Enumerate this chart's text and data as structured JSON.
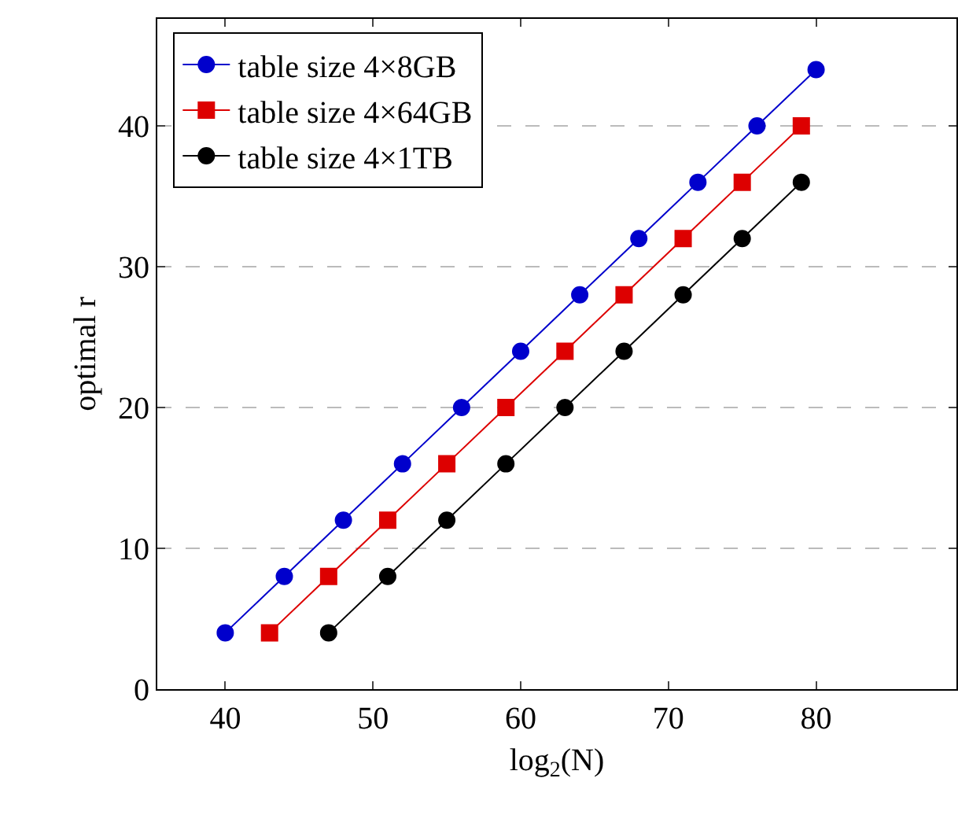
{
  "chart_data": {
    "type": "line",
    "xlabel": "log$_{2}$(N)",
    "ylabel": "optimal r",
    "xlim": [
      35.4,
      89.5
    ],
    "xticks": [
      40,
      50,
      60,
      70,
      80
    ],
    "ylim": [
      0,
      47.6
    ],
    "yticks": [
      0,
      10,
      20,
      30,
      40
    ],
    "grid": "y",
    "legend": "top left",
    "series": [
      {
        "name": "table size 4×8GB",
        "color": "#0000cc",
        "marker": "circle",
        "x": [
          40,
          44,
          48,
          52,
          56,
          60,
          64,
          68,
          72,
          76,
          80
        ],
        "values": [
          4,
          8,
          12,
          16,
          20,
          24,
          28,
          32,
          36,
          40,
          44
        ]
      },
      {
        "name": "table size 4×64GB",
        "color": "#dd0000",
        "marker": "square",
        "x": [
          43,
          47,
          51,
          55,
          59,
          63,
          67,
          71,
          75,
          79
        ],
        "values": [
          4,
          8,
          12,
          16,
          20,
          24,
          28,
          32,
          36,
          40
        ]
      },
      {
        "name": "table size 4×1TB",
        "color": "#000000",
        "marker": "circle",
        "x": [
          47,
          51,
          55,
          59,
          63,
          67,
          71,
          75,
          79
        ],
        "values": [
          4,
          8,
          12,
          16,
          20,
          24,
          28,
          32,
          36
        ]
      }
    ]
  }
}
